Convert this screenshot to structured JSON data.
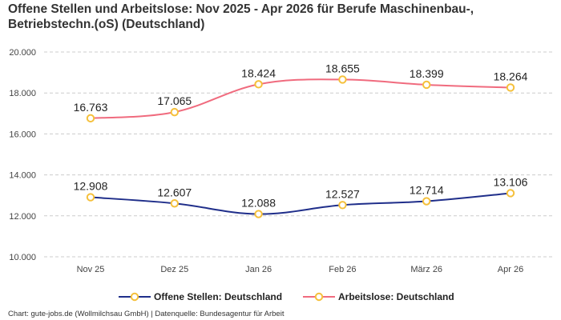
{
  "chart_data": {
    "type": "line",
    "title": "Offene Stellen und Arbeitslose: Nov 2025 - Apr 2026 für Berufe Maschinenbau-, Betriebstechn.(oS) (Deutschland)",
    "categories": [
      "Nov 25",
      "Dez 25",
      "Jan 26",
      "Feb 26",
      "März 26",
      "Apr 26"
    ],
    "y_ticks": [
      "10.000",
      "12.000",
      "14.000",
      "16.000",
      "18.000",
      "20.000"
    ],
    "ylim": [
      10000,
      20000
    ],
    "grid": true,
    "legend_position": "bottom",
    "series": [
      {
        "name": "Offene Stellen: Deutschland",
        "values": [
          12908,
          12607,
          12088,
          12527,
          12714,
          13106
        ],
        "labels": [
          "12.908",
          "12.607",
          "12.088",
          "12.527",
          "12.714",
          "13.106"
        ],
        "color": "#1f2e8a"
      },
      {
        "name": "Arbeitslose: Deutschland",
        "values": [
          16763,
          17065,
          18424,
          18655,
          18399,
          18264
        ],
        "labels": [
          "16.763",
          "17.065",
          "18.424",
          "18.655",
          "18.399",
          "18.264"
        ],
        "color": "#f06b7e"
      }
    ],
    "marker_color": "#f5c03b"
  },
  "footer": "Chart: gute-jobs.de (Wollmilchsau GmbH) | Datenquelle: Bundesagentur für Arbeit"
}
